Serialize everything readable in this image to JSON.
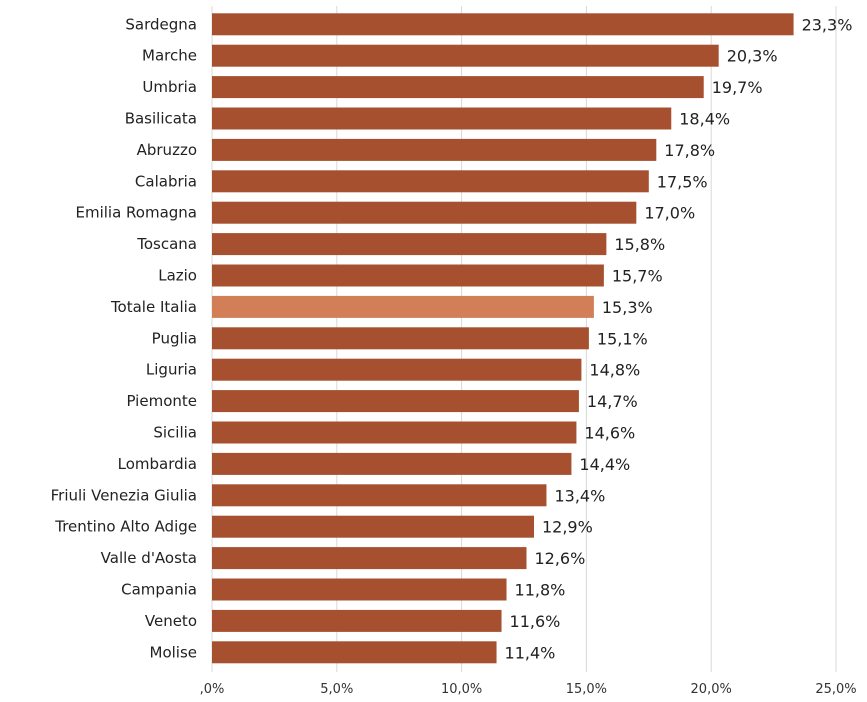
{
  "chart_data": {
    "type": "bar",
    "orientation": "horizontal",
    "categories": [
      "Sardegna",
      "Marche",
      "Umbria",
      "Basilicata",
      "Abruzzo",
      "Calabria",
      "Emilia Romagna",
      "Toscana",
      "Lazio",
      "Totale Italia",
      "Puglia",
      "Liguria",
      "Piemonte",
      "Sicilia",
      "Lombardia",
      "Friuli Venezia Giulia",
      "Trentino Alto Adige",
      "Valle d'Aosta",
      "Campania",
      "Veneto",
      "Molise"
    ],
    "values": [
      23.3,
      20.3,
      19.7,
      18.4,
      17.8,
      17.5,
      17.0,
      15.8,
      15.7,
      15.3,
      15.1,
      14.8,
      14.7,
      14.6,
      14.4,
      13.4,
      12.9,
      12.6,
      11.8,
      11.6,
      11.4
    ],
    "value_labels": [
      "23,3%",
      "20,3%",
      "19,7%",
      "18,4%",
      "17,8%",
      "17,5%",
      "17,0%",
      "15,8%",
      "15,7%",
      "15,3%",
      "15,1%",
      "14,8%",
      "14,7%",
      "14,6%",
      "14,4%",
      "13,4%",
      "12,9%",
      "12,6%",
      "11,8%",
      "11,6%",
      "11,4%"
    ],
    "highlight_category": "Totale Italia",
    "x_ticks": [
      0,
      5,
      10,
      15,
      20,
      25
    ],
    "x_tick_labels": [
      ",0%",
      "5,0%",
      "10,0%",
      "15,0%",
      "20,0%",
      "25,0%"
    ],
    "xlim": [
      0,
      25
    ],
    "grid": true,
    "title": "",
    "xlabel": "",
    "ylabel": "",
    "colors": {
      "bar": "#a6502f",
      "highlight": "#d27f58",
      "grid": "#d9d9d9"
    }
  }
}
